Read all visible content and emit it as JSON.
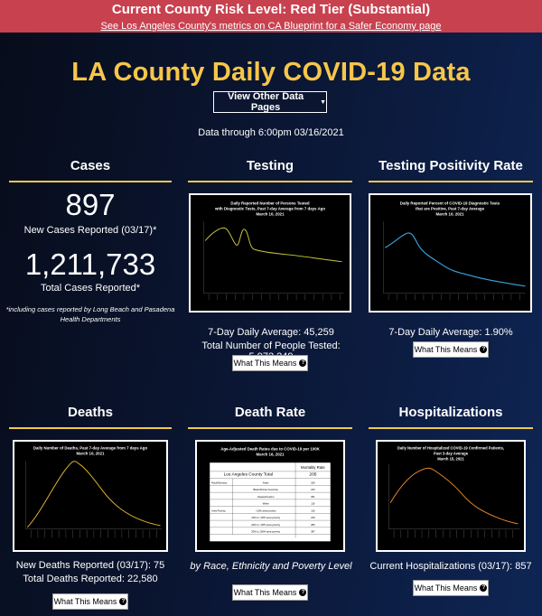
{
  "banner": {
    "title": "Current County Risk Level: Red Tier (Substantial)",
    "link": "See Los Angeles County's metrics on CA Blueprint for a Safer Economy page"
  },
  "page_title": "LA County Daily COVID-19 Data",
  "nav": {
    "label": "View Other Data Pages",
    "icon": "caret-down-icon"
  },
  "data_date": "Data through 6:00pm 03/16/2021",
  "sections": {
    "cases": {
      "title": "Cases",
      "new_value": "897",
      "new_label": "New Cases Reported (03/17)*",
      "total_value": "1,211,733",
      "total_label": "Total Cases Reported*",
      "note": "*including cases reported by Long Beach and Pasadena Health Departments"
    },
    "testing": {
      "title": "Testing",
      "chart_title": "Daily Reported Number of Persons Tested with Diagnostic Tests, Past 7-day Average from 7 days Ago March 10, 2021",
      "line1": "7-Day Daily Average: 45,259",
      "line2": "Total Number of People Tested: 5,972,249",
      "button": "What This Means"
    },
    "positivity": {
      "title": "Testing Positivity Rate",
      "chart_title": "Daily Reported Percent of COVID-19 Diagnostic Tests that are Positive, Past 7-day Average March 10, 2021",
      "line1": "7-Day Daily Average: 1.90%",
      "button": "What This Means"
    },
    "deaths": {
      "title": "Deaths",
      "chart_title": "Daily Number of Deaths, Past 7-day Average from 7 days Ago March 10, 2021",
      "line1": "New Deaths Reported (03/17): 75",
      "line2": "Total Deaths Reported: 22,580",
      "button": "What This Means"
    },
    "death_rate": {
      "title": "Death Rate",
      "table_title": "Age-Adjusted Death Rates due to COVID-19 per 100K March 16, 2021",
      "col_header": "Mortality Rate",
      "total_label": "Los Angeles County Total",
      "total_value": "205",
      "rows": [
        [
          "Race/Ethnicity",
          "Asian",
          "180"
        ],
        [
          "",
          "Black/African American",
          "184"
        ],
        [
          "",
          "Hispanic/Latino",
          "351"
        ],
        [
          "",
          "White",
          "116"
        ],
        [
          "Area Poverty",
          "<10% area poverty",
          "116"
        ],
        [
          "",
          "10% to <20% area poverty",
          "229"
        ],
        [
          "",
          "20% to <30% area poverty",
          "283"
        ],
        [
          "",
          "30% to 100% area poverty",
          "387"
        ]
      ],
      "caption": "by Race, Ethnicity and Poverty Level",
      "button": "What This Means"
    },
    "hospital": {
      "title": "Hospitalizations",
      "chart_title": "Daily Number of Hospitalized COVID-19 Confirmed Patients, Past 3-day Average March 15, 2021",
      "line1": "Current Hospitalizations (03/17): 857",
      "button": "What This Means"
    }
  },
  "colors": {
    "accent": "#f2c84b",
    "banner": "#c8414f"
  }
}
